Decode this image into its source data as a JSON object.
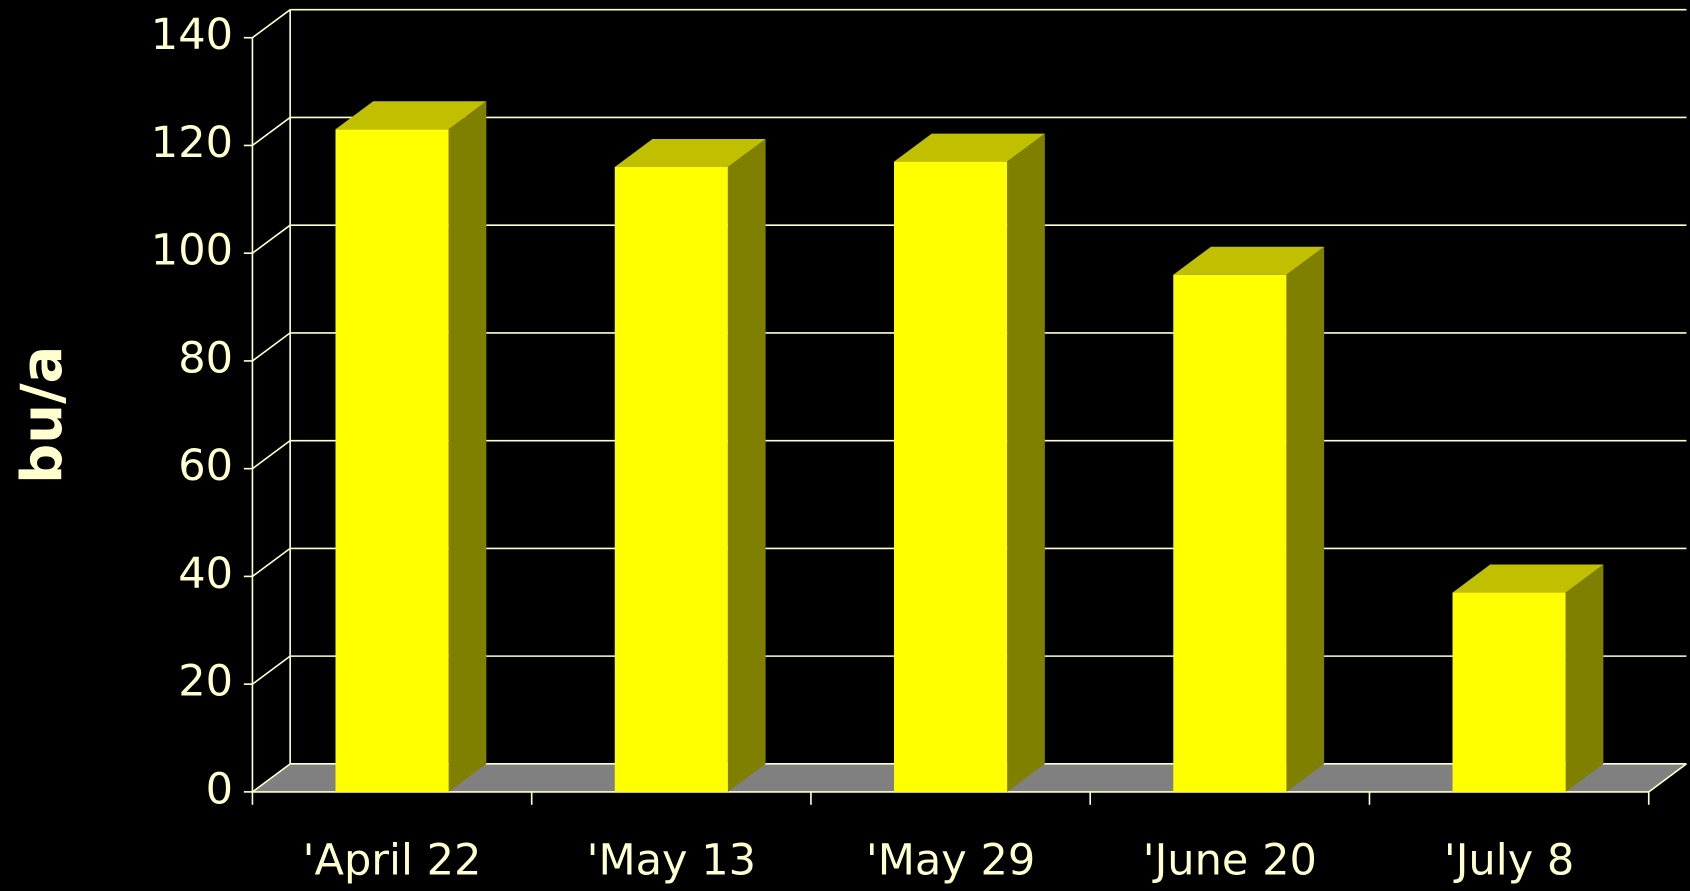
{
  "chart_data": {
    "type": "bar3d",
    "y_label": "bu/a",
    "categories": [
      "'April 22",
      "'May 13",
      "'May 29",
      "'June 20",
      "'July 8"
    ],
    "values": [
      123,
      116,
      117,
      96,
      37
    ],
    "color": "#ffff00",
    "ylim": [
      0,
      140
    ],
    "yticks": [
      0,
      20,
      40,
      60,
      80,
      100,
      120,
      140
    ],
    "grid": true
  }
}
